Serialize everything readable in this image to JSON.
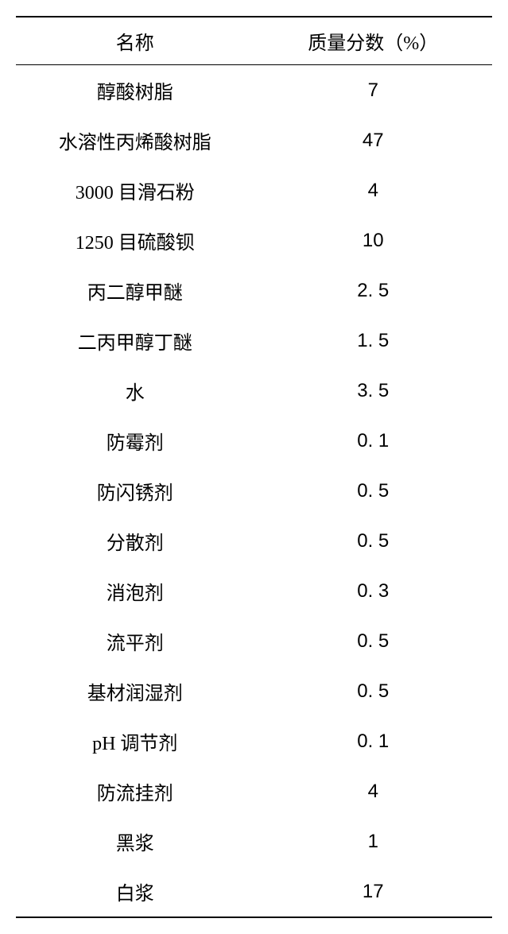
{
  "table": {
    "type": "table",
    "columns": [
      "名称",
      "质量分数（%）"
    ],
    "rows": [
      [
        "醇酸树脂",
        "7"
      ],
      [
        "水溶性丙烯酸树脂",
        "47"
      ],
      [
        "3000 目滑石粉",
        "4"
      ],
      [
        "1250 目硫酸钡",
        "10"
      ],
      [
        "丙二醇甲醚",
        "2. 5"
      ],
      [
        "二丙甲醇丁醚",
        "1. 5"
      ],
      [
        "水",
        "3. 5"
      ],
      [
        "防霉剂",
        "0. 1"
      ],
      [
        "防闪锈剂",
        "0. 5"
      ],
      [
        "分散剂",
        "0. 5"
      ],
      [
        "消泡剂",
        "0. 3"
      ],
      [
        "流平剂",
        "0. 5"
      ],
      [
        "基材润湿剂",
        "0. 5"
      ],
      [
        "pH 调节剂",
        "0. 1"
      ],
      [
        "防流挂剂",
        "4"
      ],
      [
        "黑浆",
        "1"
      ],
      [
        "白浆",
        "17"
      ]
    ],
    "background_color": "#ffffff",
    "text_color": "#000000",
    "border_color": "#000000",
    "header_fontsize": 24,
    "cell_fontsize": 24,
    "column_widths": [
      "50%",
      "50%"
    ],
    "column_alignments": [
      "center",
      "center"
    ]
  }
}
